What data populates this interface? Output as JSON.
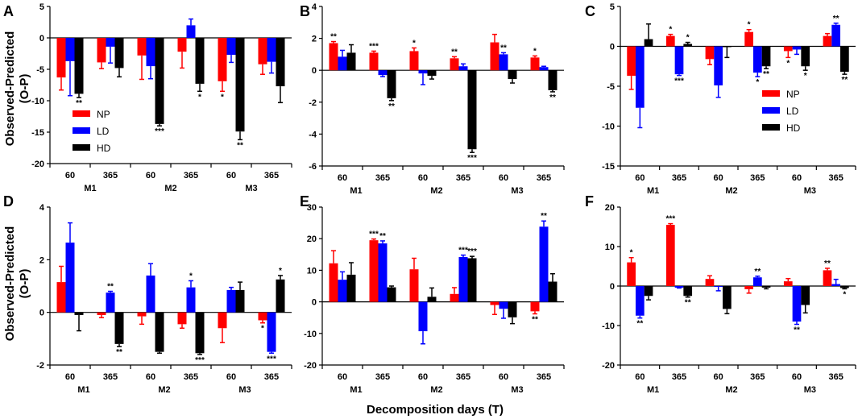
{
  "figure": {
    "ylabel_line1": "Observed-Predicted",
    "ylabel_line2": "(O-P)",
    "xlabel": "Decomposition days (T)"
  },
  "chart_data": [
    {
      "panel": "A",
      "type": "bar",
      "ylim": [
        -20,
        5
      ],
      "yticks": [
        5,
        0,
        -5,
        -10,
        -15,
        -20
      ],
      "categories": [
        "60",
        "365",
        "60",
        "365",
        "60",
        "365"
      ],
      "groups": [
        "M1",
        "M2",
        "M3"
      ],
      "group_labels_under_ticks": true,
      "legend": {
        "show": true,
        "position": "lower-left",
        "entries": [
          "NP",
          "LD",
          "HD"
        ]
      },
      "series": [
        {
          "name": "NP",
          "color": "#ff0000",
          "values": [
            -6.3,
            -3.9,
            -2.8,
            -2.2,
            -6.9,
            -4.2
          ],
          "errors": [
            2.0,
            1.0,
            3.8,
            2.6,
            1.6,
            1.6
          ],
          "sig": [
            "",
            "",
            "",
            "",
            "*",
            ""
          ]
        },
        {
          "name": "LD",
          "color": "#0000ff",
          "values": [
            -3.7,
            -1.4,
            -4.5,
            2.0,
            -2.7,
            -3.8
          ],
          "errors": [
            5.5,
            2.6,
            2.0,
            1.0,
            1.2,
            1.8
          ],
          "sig": [
            "",
            "",
            "",
            "",
            "",
            ""
          ]
        },
        {
          "name": "HD",
          "color": "#000000",
          "values": [
            -8.9,
            -4.8,
            -13.7,
            -7.3,
            -14.9,
            -7.7
          ],
          "errors": [
            0.6,
            1.4,
            0.3,
            1.2,
            1.3,
            2.6
          ],
          "sig": [
            "**",
            "",
            "***",
            "*",
            "**",
            ""
          ]
        }
      ]
    },
    {
      "panel": "B",
      "type": "bar",
      "ylim": [
        -6,
        4
      ],
      "yticks": [
        4,
        2,
        0,
        -2,
        -4,
        -6
      ],
      "categories": [
        "60",
        "365",
        "60",
        "365",
        "60",
        "365"
      ],
      "groups": [
        "M1",
        "M2",
        "M3"
      ],
      "group_labels_under_ticks": false,
      "legend": {
        "show": false
      },
      "series": [
        {
          "name": "NP",
          "color": "#ff0000",
          "values": [
            1.7,
            1.1,
            1.2,
            0.75,
            1.75,
            0.8
          ],
          "errors": [
            0.1,
            0.1,
            0.2,
            0.1,
            0.5,
            0.1
          ],
          "sig": [
            "**",
            "***",
            "*",
            "**",
            "",
            "*"
          ]
        },
        {
          "name": "LD",
          "color": "#0000ff",
          "values": [
            0.85,
            -0.3,
            -0.2,
            0.25,
            1.0,
            0.2
          ],
          "errors": [
            0.4,
            0.1,
            0.7,
            0.15,
            0.1,
            0.05
          ],
          "sig": [
            "",
            "",
            "",
            "",
            "**",
            ""
          ]
        },
        {
          "name": "HD",
          "color": "#000000",
          "values": [
            1.1,
            -1.75,
            -0.35,
            -4.95,
            -0.55,
            -1.25
          ],
          "errors": [
            0.5,
            0.15,
            0.2,
            0.2,
            0.25,
            0.1
          ],
          "sig": [
            "",
            "**",
            "",
            "***",
            "",
            "**"
          ]
        }
      ]
    },
    {
      "panel": "C",
      "type": "bar",
      "ylim": [
        -15,
        5
      ],
      "yticks": [
        5,
        0,
        -5,
        -10,
        -15
      ],
      "categories": [
        "60",
        "365",
        "60",
        "365",
        "60",
        "365"
      ],
      "groups": [
        "M1",
        "M2",
        "M3"
      ],
      "group_labels_under_ticks": false,
      "legend": {
        "show": true,
        "position": "right",
        "entries": [
          "NP",
          "LD",
          "HD"
        ]
      },
      "series": [
        {
          "name": "NP",
          "color": "#ff0000",
          "values": [
            -3.7,
            1.3,
            -1.6,
            1.8,
            -0.6,
            1.3
          ],
          "errors": [
            1.7,
            0.2,
            0.7,
            0.3,
            0.8,
            0.3
          ],
          "sig": [
            "",
            "*",
            "",
            "*",
            "*",
            ""
          ]
        },
        {
          "name": "LD",
          "color": "#0000ff",
          "values": [
            -7.7,
            -3.5,
            -4.9,
            -3.3,
            -0.4,
            2.7
          ],
          "errors": [
            2.5,
            0.15,
            1.5,
            0.5,
            0.6,
            0.2
          ],
          "sig": [
            "",
            "***",
            "",
            "*",
            "",
            "**"
          ]
        },
        {
          "name": "HD",
          "color": "#000000",
          "values": [
            0.9,
            0.3,
            -0.1,
            -2.5,
            -2.5,
            -3.2
          ],
          "errors": [
            1.9,
            0.2,
            1.3,
            0.3,
            0.5,
            0.3
          ],
          "sig": [
            "",
            "*",
            "",
            "**",
            "*",
            "**"
          ]
        }
      ]
    },
    {
      "panel": "D",
      "type": "bar",
      "ylim": [
        -2,
        4
      ],
      "yticks": [
        4,
        2,
        0,
        -2
      ],
      "categories": [
        "60",
        "365",
        "60",
        "365",
        "60",
        "365"
      ],
      "groups": [
        "M1",
        "M2",
        "M3"
      ],
      "group_labels_under_ticks": false,
      "legend": {
        "show": false
      },
      "series": [
        {
          "name": "NP",
          "color": "#ff0000",
          "values": [
            1.15,
            -0.1,
            -0.15,
            -0.45,
            -0.6,
            -0.3
          ],
          "errors": [
            0.6,
            0.1,
            0.3,
            0.15,
            0.55,
            0.1
          ],
          "sig": [
            "",
            "",
            "",
            "",
            "",
            "*"
          ]
        },
        {
          "name": "LD",
          "color": "#0000ff",
          "values": [
            2.65,
            0.75,
            1.4,
            0.95,
            0.85,
            -1.5
          ],
          "errors": [
            0.75,
            0.05,
            0.45,
            0.25,
            0.1,
            0.05
          ],
          "sig": [
            "",
            "**",
            "",
            "*",
            "",
            "***"
          ]
        },
        {
          "name": "HD",
          "color": "#000000",
          "values": [
            -0.1,
            -1.2,
            -1.5,
            -1.55,
            0.85,
            1.25
          ],
          "errors": [
            0.6,
            0.1,
            0.05,
            0.05,
            0.3,
            0.15
          ],
          "sig": [
            "",
            "**",
            "",
            "***",
            "",
            "*"
          ]
        }
      ]
    },
    {
      "panel": "E",
      "type": "bar",
      "ylim": [
        -20,
        30
      ],
      "yticks": [
        30,
        20,
        10,
        0,
        -10,
        -20
      ],
      "categories": [
        "60",
        "365",
        "60",
        "365",
        "60",
        "365"
      ],
      "groups": [
        "M1",
        "M2",
        "M3"
      ],
      "group_labels_under_ticks": false,
      "legend": {
        "show": false
      },
      "series": [
        {
          "name": "NP",
          "color": "#ff0000",
          "values": [
            12.2,
            19.5,
            10.3,
            2.5,
            -1.0,
            -3.0
          ],
          "errors": [
            4.0,
            0.4,
            3.5,
            2.0,
            3.0,
            0.8
          ],
          "sig": [
            "",
            "***",
            "",
            "",
            "",
            "**"
          ]
        },
        {
          "name": "LD",
          "color": "#0000ff",
          "values": [
            7.0,
            18.5,
            -9.3,
            14.2,
            -2.2,
            23.8
          ],
          "errors": [
            2.5,
            0.8,
            4.0,
            0.6,
            3.0,
            1.8
          ],
          "sig": [
            "",
            "**",
            "",
            "***",
            "",
            "**"
          ]
        },
        {
          "name": "HD",
          "color": "#000000",
          "values": [
            8.6,
            4.6,
            1.6,
            13.8,
            -4.9,
            6.4
          ],
          "errors": [
            3.8,
            0.4,
            2.8,
            0.6,
            2.0,
            2.5
          ],
          "sig": [
            "",
            "",
            "",
            "***",
            "",
            ""
          ]
        }
      ]
    },
    {
      "panel": "F",
      "type": "bar",
      "ylim": [
        -20,
        20
      ],
      "yticks": [
        20,
        10,
        0,
        -10,
        -20
      ],
      "categories": [
        "60",
        "365",
        "60",
        "365",
        "60",
        "365"
      ],
      "groups": [
        "M1",
        "M2",
        "M3"
      ],
      "group_labels_under_ticks": false,
      "legend": {
        "show": false
      },
      "series": [
        {
          "name": "NP",
          "color": "#ff0000",
          "values": [
            6.0,
            15.5,
            1.8,
            -0.8,
            1.2,
            4.0
          ],
          "errors": [
            1.2,
            0.3,
            0.8,
            1.0,
            0.7,
            0.5
          ],
          "sig": [
            "*",
            "***",
            "",
            "",
            "",
            "**"
          ]
        },
        {
          "name": "LD",
          "color": "#0000ff",
          "values": [
            -7.5,
            -0.4,
            -0.2,
            2.2,
            -9.0,
            0.5
          ],
          "errors": [
            0.6,
            0.1,
            1.0,
            0.3,
            0.7,
            1.2
          ],
          "sig": [
            "**",
            "",
            "",
            "**",
            "**",
            ""
          ]
        },
        {
          "name": "HD",
          "color": "#000000",
          "values": [
            -2.5,
            -2.5,
            -5.8,
            -0.4,
            -4.8,
            -0.5
          ],
          "errors": [
            1.0,
            0.3,
            1.2,
            0.3,
            2.0,
            0.2
          ],
          "sig": [
            "",
            "**",
            "",
            "",
            "",
            "*"
          ]
        }
      ]
    }
  ]
}
